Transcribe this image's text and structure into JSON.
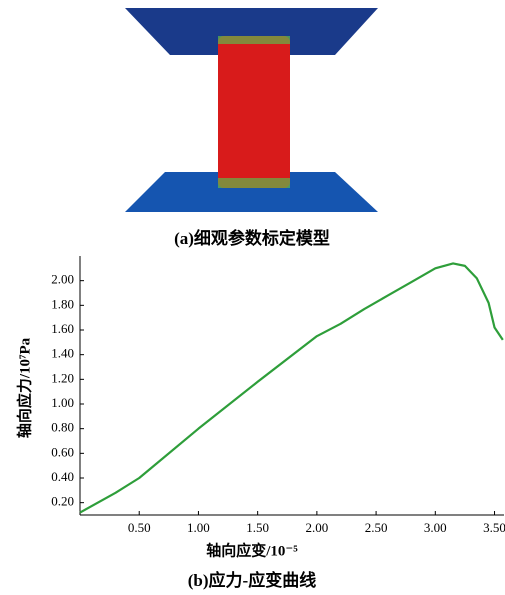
{
  "panel_a": {
    "caption": "(a)细观参数标定模型"
  },
  "chart_data": {
    "type": "line",
    "caption": "(b)应力-应变曲线",
    "x_label": "轴向应变/10⁻⁵",
    "y_label": "轴向应力/10⁷Pa",
    "x": [
      0,
      0.3,
      0.5,
      1.0,
      1.5,
      2.0,
      2.2,
      2.4,
      2.6,
      2.8,
      3.0,
      3.15,
      3.25,
      3.35,
      3.45,
      3.5,
      3.57
    ],
    "values": [
      0.12,
      0.28,
      0.4,
      0.8,
      1.18,
      1.55,
      1.65,
      1.77,
      1.88,
      1.99,
      2.1,
      2.14,
      2.12,
      2.02,
      1.82,
      1.62,
      1.52
    ],
    "color": "#2e9e3a",
    "xlim": [
      0,
      3.58
    ],
    "ylim": [
      0.1,
      2.2
    ],
    "xticks": [
      {
        "value": 0.5,
        "label": "0.50"
      },
      {
        "value": 1.0,
        "label": "1.00"
      },
      {
        "value": 1.5,
        "label": "1.50"
      },
      {
        "value": 2.0,
        "label": "2.00"
      },
      {
        "value": 2.5,
        "label": "2.50"
      },
      {
        "value": 3.0,
        "label": "3.00"
      },
      {
        "value": 3.5,
        "label": "3.50"
      }
    ],
    "yticks": [
      {
        "value": 0.2,
        "label": "0.20"
      },
      {
        "value": 0.4,
        "label": "0.40"
      },
      {
        "value": 0.6,
        "label": "0.60"
      },
      {
        "value": 0.8,
        "label": "0.80"
      },
      {
        "value": 1.0,
        "label": "1.00"
      },
      {
        "value": 1.2,
        "label": "1.20"
      },
      {
        "value": 1.4,
        "label": "1.40"
      },
      {
        "value": 1.6,
        "label": "1.60"
      },
      {
        "value": 1.8,
        "label": "1.80"
      },
      {
        "value": 2.0,
        "label": "2.00"
      }
    ],
    "grid": false
  }
}
